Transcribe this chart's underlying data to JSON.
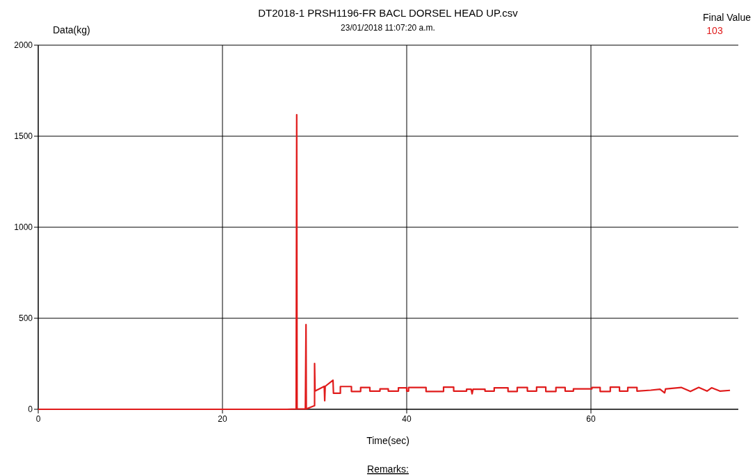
{
  "chart_data": {
    "type": "line",
    "title": "DT2018-1 PRSH1196-FR BACL DORSEL HEAD UP.csv",
    "subtitle": "23/01/2018 11:07:20 a.m.",
    "xlabel": "Time(sec)",
    "ylabel": "Data(kg)",
    "annotations": [
      "Final Value",
      "103",
      "Remarks:"
    ],
    "xlim": [
      0,
      76
    ],
    "ylim": [
      0,
      2000
    ],
    "xticks": [
      0,
      20,
      40,
      60
    ],
    "yticks": [
      0,
      500,
      1000,
      1500,
      2000
    ],
    "grid": true,
    "line_style": "solid",
    "series": [
      {
        "color": "#e01b1b",
        "x": [
          0,
          27,
          28.0,
          28.06,
          28.1,
          29.0,
          29.07,
          29.1,
          30.0,
          30.0,
          30.05,
          31.05,
          31.1,
          31.15,
          32.0,
          32.05,
          32.8,
          32.8,
          34.0,
          34.0,
          35.0,
          35.0,
          36.0,
          36.0,
          37.1,
          37.1,
          38.0,
          38.0,
          39.1,
          39.1,
          40.0,
          40.0,
          40.2,
          40.2,
          42.1,
          42.1,
          44.0,
          44.0,
          45.1,
          45.1,
          46.5,
          46.5,
          47.0,
          47.1,
          47.2,
          48.5,
          48.5,
          49.5,
          49.5,
          51.0,
          51.0,
          52.0,
          52.0,
          53.1,
          53.1,
          54.1,
          54.1,
          55.1,
          55.1,
          56.2,
          56.2,
          57.2,
          57.2,
          58.1,
          58.1,
          60.1,
          60.1,
          61.0,
          61.0,
          62.1,
          62.1,
          63.1,
          63.1,
          64.0,
          64.0,
          65.0,
          65.0,
          66.5,
          67.5,
          68.0,
          68.1,
          68.2,
          69.8,
          69.8,
          70.8,
          70.8,
          71.7,
          71.7,
          72.6,
          72.6,
          73.1,
          73.1,
          74.0,
          74.0,
          75.1
        ],
        "values": [
          0,
          0,
          2,
          1618,
          2,
          2,
          465,
          2,
          20,
          252,
          100,
          126,
          47,
          126,
          160,
          88,
          88,
          125,
          125,
          98,
          98,
          120,
          120,
          100,
          100,
          112,
          112,
          100,
          100,
          118,
          118,
          100,
          100,
          120,
          120,
          98,
          98,
          122,
          122,
          100,
          100,
          110,
          110,
          85,
          110,
          110,
          100,
          100,
          118,
          118,
          98,
          98,
          120,
          120,
          100,
          100,
          122,
          122,
          98,
          98,
          120,
          120,
          100,
          100,
          112,
          112,
          120,
          120,
          98,
          98,
          122,
          122,
          100,
          100,
          120,
          120,
          100,
          105,
          110,
          90,
          112,
          112,
          120,
          120,
          98,
          98,
          120,
          120,
          100,
          100,
          118,
          118,
          100,
          100,
          104
        ]
      }
    ]
  }
}
